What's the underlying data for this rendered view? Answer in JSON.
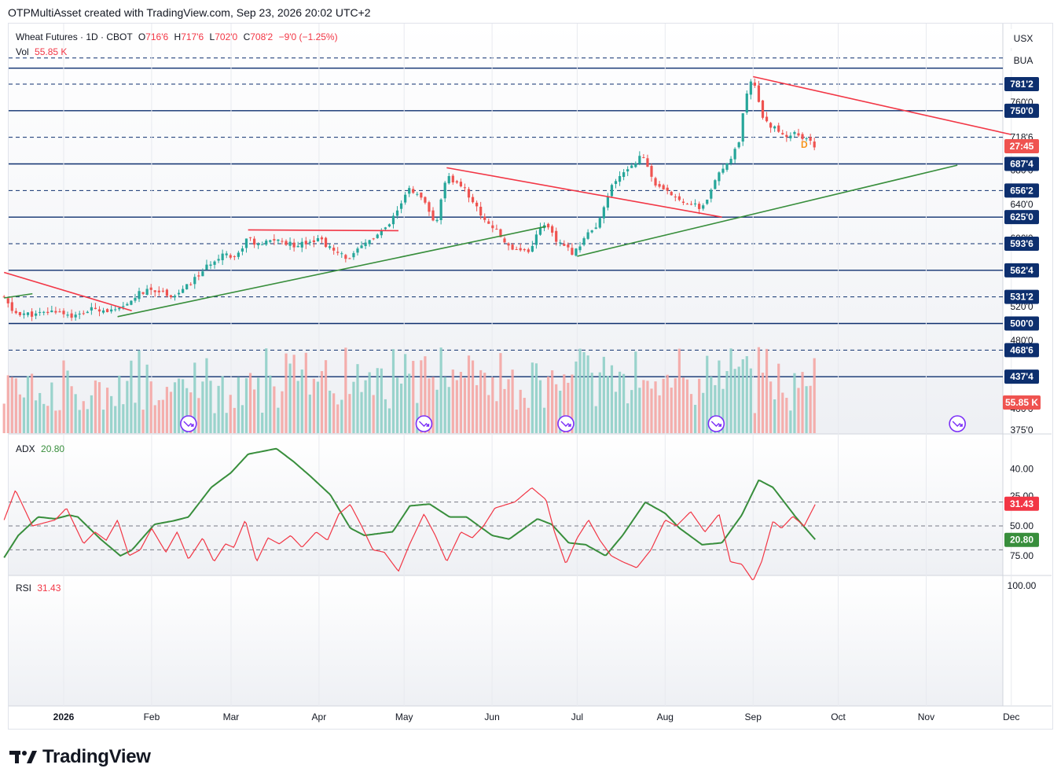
{
  "header": {
    "text": "OTPMultiAsset created with TradingView.com, Sep 23, 2026 20:02 UTC+2"
  },
  "main_legend": {
    "symbol": "Wheat Futures · 1D · CBOT",
    "open_label": "O",
    "open": "716'6",
    "high_label": "H",
    "high": "717'6",
    "low_label": "L",
    "low": "702'0",
    "close_label": "C",
    "close": "708'2",
    "change": "−9'0 (−1.25%)"
  },
  "vol_legend": {
    "label": "Vol",
    "value": "55.85 K"
  },
  "adx_legend": {
    "label": "ADX",
    "value": "20.80"
  },
  "rsi_legend": {
    "label": "RSI",
    "value": "31.43"
  },
  "currency_buttons": [
    "USX",
    "BUA"
  ],
  "countdown_mark": "D",
  "logo": {
    "text": "TradingView"
  },
  "colors": {
    "up": "#26a69a",
    "down": "#ef5350",
    "trend_down": "#f23645",
    "trend_up": "#388e3c",
    "level": "#0d2f6e",
    "adx": "#388e3c",
    "rsi": "#f23645"
  },
  "chart_data": [
    {
      "type": "candlestick",
      "title": "Wheat Futures · 1D · CBOT",
      "x_ticks": [
        "2026",
        "Feb",
        "Mar",
        "Apr",
        "May",
        "Jun",
        "Jul",
        "Aug",
        "Sep",
        "Oct",
        "Nov",
        "Dec"
      ],
      "y_range": [
        375,
        812
      ],
      "price_axis_labels": [
        {
          "v": 760,
          "label": "760'0"
        },
        {
          "v": 718.75,
          "label": "718'6"
        },
        {
          "v": 680,
          "label": "680'0"
        },
        {
          "v": 640,
          "label": "640'0"
        },
        {
          "v": 600,
          "label": "600'0"
        },
        {
          "v": 520,
          "label": "520'0"
        },
        {
          "v": 480,
          "label": "480'0"
        },
        {
          "v": 400,
          "label": "400'0"
        },
        {
          "v": 375,
          "label": "375'0"
        }
      ],
      "level_labels": [
        {
          "v": 781.25,
          "label": "781'2"
        },
        {
          "v": 750,
          "label": "750'0"
        },
        {
          "v": 687.5,
          "label": "687'4"
        },
        {
          "v": 656.25,
          "label": "656'2"
        },
        {
          "v": 625,
          "label": "625'0"
        },
        {
          "v": 593.75,
          "label": "593'6"
        },
        {
          "v": 562.5,
          "label": "562'4"
        },
        {
          "v": 531.25,
          "label": "531'2"
        },
        {
          "v": 500,
          "label": "500'0"
        },
        {
          "v": 468.75,
          "label": "468'6"
        },
        {
          "v": 437.5,
          "label": "437'4"
        }
      ],
      "countdown_label": {
        "v": 708.25,
        "label": "27:45"
      },
      "volume_label": "55.85 K",
      "levels": [
        {
          "v": 812,
          "style": "dashed"
        },
        {
          "v": 781.25,
          "style": "dashed"
        },
        {
          "v": 750,
          "style": "solid"
        },
        {
          "v": 718.75,
          "style": "dashed"
        },
        {
          "v": 687.5,
          "style": "solid"
        },
        {
          "v": 656.25,
          "style": "dashed"
        },
        {
          "v": 625,
          "style": "solid"
        },
        {
          "v": 593.75,
          "style": "dashed"
        },
        {
          "v": 562.5,
          "style": "solid"
        },
        {
          "v": 531.25,
          "style": "dashed"
        },
        {
          "v": 500,
          "style": "solid"
        },
        {
          "v": 468.75,
          "style": "dashed"
        },
        {
          "v": 437.5,
          "style": "solid"
        },
        {
          "v": 800,
          "style": "solid"
        }
      ],
      "anchors": [
        [
          "2025-12-11",
          530
        ],
        [
          "2025-12-14",
          513
        ],
        [
          "2025-12-22",
          510
        ],
        [
          "2025-12-29",
          515
        ],
        [
          "2026-01-05",
          508
        ],
        [
          "2026-01-12",
          518
        ],
        [
          "2026-01-19",
          514
        ],
        [
          "2026-01-23",
          520
        ],
        [
          "2026-01-27",
          535
        ],
        [
          "2026-02-02",
          540
        ],
        [
          "2026-02-09",
          532
        ],
        [
          "2026-02-14",
          545
        ],
        [
          "2026-02-20",
          565
        ],
        [
          "2026-02-26",
          583
        ],
        [
          "2026-03-03",
          578
        ],
        [
          "2026-03-07",
          603
        ],
        [
          "2026-03-10",
          590
        ],
        [
          "2026-03-16",
          599
        ],
        [
          "2026-03-23",
          592
        ],
        [
          "2026-04-01",
          600
        ],
        [
          "2026-04-07",
          582
        ],
        [
          "2026-04-12",
          577
        ],
        [
          "2026-04-18",
          596
        ],
        [
          "2026-04-25",
          612
        ],
        [
          "2026-04-30",
          640
        ],
        [
          "2026-05-03",
          660
        ],
        [
          "2026-05-08",
          642
        ],
        [
          "2026-05-12",
          615
        ],
        [
          "2026-05-16",
          672
        ],
        [
          "2026-05-22",
          660
        ],
        [
          "2026-05-28",
          628
        ],
        [
          "2026-06-02",
          610
        ],
        [
          "2026-06-07",
          590
        ],
        [
          "2026-06-14",
          585
        ],
        [
          "2026-06-19",
          620
        ],
        [
          "2026-06-24",
          595
        ],
        [
          "2026-06-30",
          582
        ],
        [
          "2026-07-04",
          605
        ],
        [
          "2026-07-08",
          612
        ],
        [
          "2026-07-13",
          660
        ],
        [
          "2026-07-18",
          680
        ],
        [
          "2026-07-24",
          698
        ],
        [
          "2026-07-29",
          660
        ],
        [
          "2026-08-04",
          650
        ],
        [
          "2026-08-10",
          640
        ],
        [
          "2026-08-14",
          635
        ],
        [
          "2026-08-20",
          675
        ],
        [
          "2026-08-27",
          710
        ],
        [
          "2026-08-29",
          760
        ],
        [
          "2026-09-01",
          790
        ],
        [
          "2026-09-04",
          745
        ],
        [
          "2026-09-08",
          730
        ],
        [
          "2026-09-13",
          720
        ],
        [
          "2026-09-16",
          725
        ],
        [
          "2026-09-19",
          717
        ],
        [
          "2026-09-23",
          708
        ]
      ],
      "trendlines": [
        {
          "color": "trend_down",
          "from": [
            "2025-12-11",
            560
          ],
          "to": [
            "2026-01-25",
            515
          ]
        },
        {
          "color": "trend_down",
          "from": [
            "2026-03-07",
            610
          ],
          "to": [
            "2026-04-29",
            609
          ]
        },
        {
          "color": "trend_down",
          "from": [
            "2026-05-16",
            683
          ],
          "to": [
            "2026-08-21",
            625
          ]
        },
        {
          "color": "trend_down",
          "from": [
            "2026-09-01",
            790
          ],
          "to": [
            "2026-12-01",
            722
          ]
        },
        {
          "color": "trend_up",
          "from": [
            "2025-12-11",
            530
          ],
          "to": [
            "2025-12-21",
            535
          ]
        },
        {
          "color": "trend_up",
          "from": [
            "2026-01-20",
            508
          ],
          "to": [
            "2026-06-20",
            614
          ]
        },
        {
          "color": "trend_up",
          "from": [
            "2026-07-01",
            579
          ],
          "to": [
            "2026-11-12",
            686
          ]
        }
      ],
      "event_markers": [
        "2026-02-14",
        "2026-05-08",
        "2026-06-27",
        "2026-08-19",
        "2026-11-12"
      ]
    },
    {
      "type": "line",
      "name": "ADX",
      "y_ticks": [
        40,
        30
      ],
      "y_range": [
        14,
        48
      ],
      "current": 20.8,
      "anchors": [
        [
          "2025-12-11",
          16
        ],
        [
          "2025-12-16",
          22
        ],
        [
          "2025-12-23",
          27
        ],
        [
          "2025-12-29",
          26.5
        ],
        [
          "2026-01-03",
          27.5
        ],
        [
          "2026-01-06",
          27
        ],
        [
          "2026-01-14",
          21
        ],
        [
          "2026-01-21",
          16.5
        ],
        [
          "2026-01-25",
          18
        ],
        [
          "2026-02-02",
          25
        ],
        [
          "2026-02-09",
          26
        ],
        [
          "2026-02-14",
          27
        ],
        [
          "2026-02-22",
          35
        ],
        [
          "2026-03-01",
          39
        ],
        [
          "2026-03-07",
          44
        ],
        [
          "2026-03-17",
          45.5
        ],
        [
          "2026-03-23",
          42
        ],
        [
          "2026-03-29",
          38
        ],
        [
          "2026-04-05",
          33
        ],
        [
          "2026-04-12",
          24
        ],
        [
          "2026-04-17",
          22
        ],
        [
          "2026-04-27",
          23
        ],
        [
          "2026-05-03",
          30
        ],
        [
          "2026-05-10",
          30.5
        ],
        [
          "2026-05-17",
          27
        ],
        [
          "2026-05-23",
          27
        ],
        [
          "2026-06-01",
          22
        ],
        [
          "2026-06-07",
          21
        ],
        [
          "2026-06-17",
          26.5
        ],
        [
          "2026-06-22",
          25
        ],
        [
          "2026-06-28",
          20
        ],
        [
          "2026-07-04",
          19.5
        ],
        [
          "2026-07-11",
          16.5
        ],
        [
          "2026-07-17",
          22
        ],
        [
          "2026-07-25",
          31
        ],
        [
          "2026-08-01",
          28
        ],
        [
          "2026-08-06",
          24
        ],
        [
          "2026-08-14",
          19.5
        ],
        [
          "2026-08-21",
          20
        ],
        [
          "2026-08-28",
          27.5
        ],
        [
          "2026-09-03",
          37
        ],
        [
          "2026-09-08",
          35
        ],
        [
          "2026-09-16",
          27
        ],
        [
          "2026-09-23",
          20.8
        ]
      ]
    },
    {
      "type": "line",
      "name": "RSI",
      "y_ticks": [
        100,
        75,
        50,
        25
      ],
      "y_range": [
        10,
        100
      ],
      "bands": [
        70,
        50,
        30
      ],
      "current": 31.43,
      "anchors": [
        [
          "2025-12-11",
          45
        ],
        [
          "2025-12-15",
          20
        ],
        [
          "2025-12-21",
          50
        ],
        [
          "2025-12-29",
          45
        ],
        [
          "2026-01-02",
          35
        ],
        [
          "2026-01-08",
          65
        ],
        [
          "2026-01-12",
          55
        ],
        [
          "2026-01-16",
          62
        ],
        [
          "2026-01-20",
          45
        ],
        [
          "2026-01-24",
          75
        ],
        [
          "2026-01-28",
          70
        ],
        [
          "2026-02-01",
          52
        ],
        [
          "2026-02-06",
          72
        ],
        [
          "2026-02-10",
          55
        ],
        [
          "2026-02-14",
          78
        ],
        [
          "2026-02-19",
          60
        ],
        [
          "2026-02-23",
          80
        ],
        [
          "2026-02-27",
          65
        ],
        [
          "2026-03-02",
          68
        ],
        [
          "2026-03-06",
          45
        ],
        [
          "2026-03-10",
          80
        ],
        [
          "2026-03-14",
          60
        ],
        [
          "2026-03-18",
          65
        ],
        [
          "2026-03-22",
          58
        ],
        [
          "2026-03-26",
          68
        ],
        [
          "2026-03-31",
          55
        ],
        [
          "2026-04-04",
          62
        ],
        [
          "2026-04-08",
          40
        ],
        [
          "2026-04-12",
          32
        ],
        [
          "2026-04-16",
          50
        ],
        [
          "2026-04-20",
          70
        ],
        [
          "2026-04-24",
          72
        ],
        [
          "2026-04-29",
          88
        ],
        [
          "2026-05-03",
          65
        ],
        [
          "2026-05-08",
          40
        ],
        [
          "2026-05-12",
          58
        ],
        [
          "2026-05-16",
          80
        ],
        [
          "2026-05-21",
          55
        ],
        [
          "2026-05-25",
          60
        ],
        [
          "2026-05-29",
          50
        ],
        [
          "2026-06-02",
          35
        ],
        [
          "2026-06-09",
          30
        ],
        [
          "2026-06-15",
          18
        ],
        [
          "2026-06-20",
          28
        ],
        [
          "2026-06-23",
          55
        ],
        [
          "2026-06-27",
          82
        ],
        [
          "2026-07-01",
          60
        ],
        [
          "2026-07-05",
          45
        ],
        [
          "2026-07-09",
          62
        ],
        [
          "2026-07-13",
          75
        ],
        [
          "2026-07-17",
          80
        ],
        [
          "2026-07-22",
          85
        ],
        [
          "2026-07-27",
          70
        ],
        [
          "2026-08-01",
          45
        ],
        [
          "2026-08-05",
          50
        ],
        [
          "2026-08-10",
          38
        ],
        [
          "2026-08-15",
          55
        ],
        [
          "2026-08-20",
          40
        ],
        [
          "2026-08-24",
          80
        ],
        [
          "2026-08-28",
          82
        ],
        [
          "2026-09-01",
          96
        ],
        [
          "2026-09-04",
          80
        ],
        [
          "2026-09-08",
          46
        ],
        [
          "2026-09-11",
          52
        ],
        [
          "2026-09-15",
          42
        ],
        [
          "2026-09-19",
          50
        ],
        [
          "2026-09-23",
          31.43
        ]
      ]
    }
  ]
}
